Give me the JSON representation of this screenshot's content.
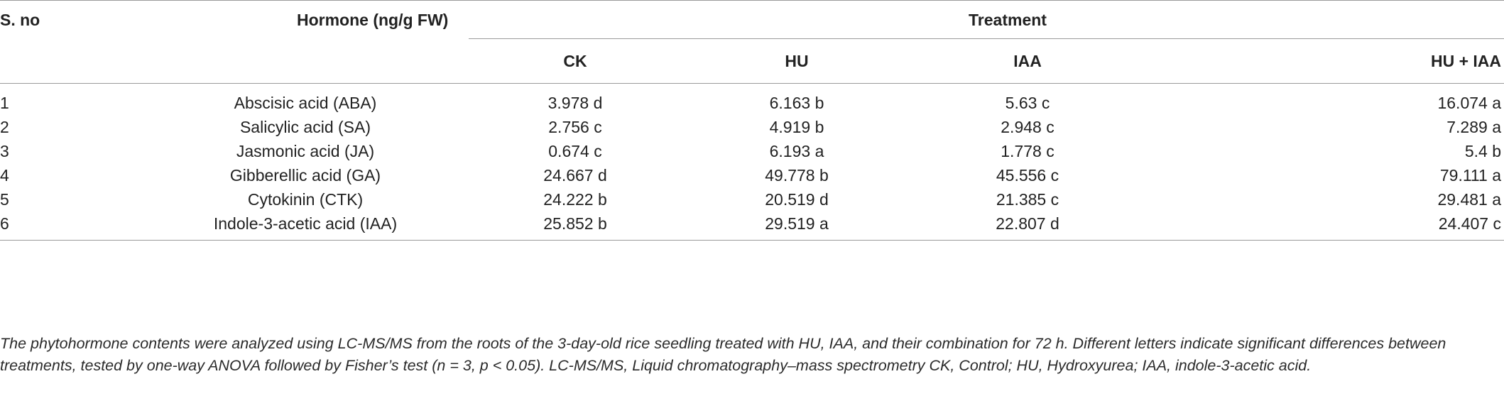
{
  "table": {
    "headers": {
      "sno": "S. no",
      "hormone": "Hormone (ng/g FW)",
      "treatment": "Treatment",
      "treatments": [
        "CK",
        "HU",
        "IAA",
        "HU + IAA"
      ]
    },
    "rows": [
      {
        "sno": "1",
        "hormone": "Abscisic acid (ABA)",
        "ck": "3.978 d",
        "hu": "6.163 b",
        "iaa": "5.63 c",
        "hu_iaa": "16.074 a"
      },
      {
        "sno": "2",
        "hormone": "Salicylic acid (SA)",
        "ck": "2.756 c",
        "hu": "4.919 b",
        "iaa": "2.948 c",
        "hu_iaa": "7.289 a"
      },
      {
        "sno": "3",
        "hormone": "Jasmonic acid (JA)",
        "ck": "0.674 c",
        "hu": "6.193 a",
        "iaa": "1.778 c",
        "hu_iaa": "5.4 b"
      },
      {
        "sno": "4",
        "hormone": "Gibberellic acid (GA)",
        "ck": "24.667 d",
        "hu": "49.778 b",
        "iaa": "45.556 c",
        "hu_iaa": "79.111 a"
      },
      {
        "sno": "5",
        "hormone": "Cytokinin (CTK)",
        "ck": "24.222 b",
        "hu": "20.519 d",
        "iaa": "21.385 c",
        "hu_iaa": "29.481 a"
      },
      {
        "sno": "6",
        "hormone": "Indole-3-acetic acid (IAA)",
        "ck": "25.852 b",
        "hu": "29.519 a",
        "iaa": "22.807 d",
        "hu_iaa": "24.407 c"
      }
    ]
  },
  "footnote": "The phytohormone contents were analyzed using LC-MS/MS from the roots of the 3-day-old rice seedling treated with HU, IAA, and their combination for 72 h. Different letters indicate significant differences between treatments, tested by one-way ANOVA followed by Fisher’s test (n = 3, p < 0.05). LC-MS/MS, Liquid chromatography–mass spectrometry CK, Control; HU, Hydroxyurea; IAA, indole-3-acetic acid."
}
